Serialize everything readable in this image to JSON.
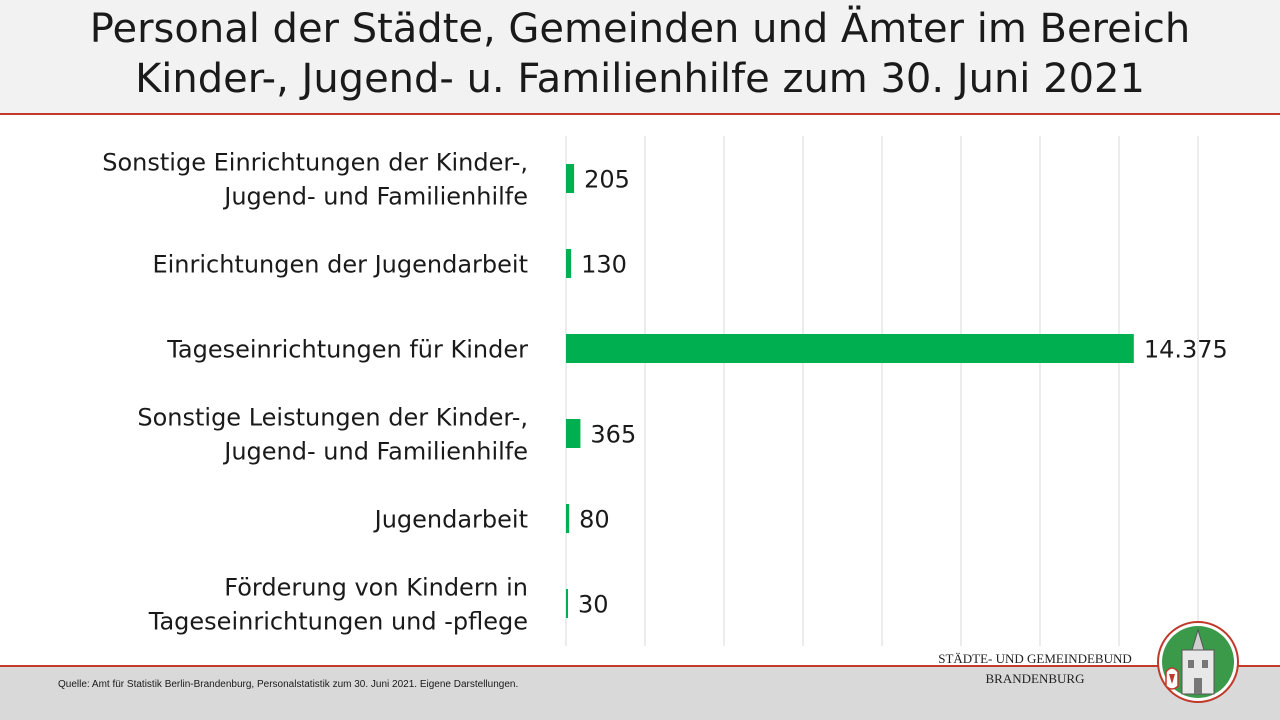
{
  "title": {
    "line1": "Personal der Städte, Gemeinden und Ämter im Bereich",
    "line2": "Kinder-, Jugend- u. Familienhilfe zum 30. Juni 2021"
  },
  "chart_data": {
    "type": "bar",
    "orientation": "horizontal",
    "categories": [
      [
        "Sonstige Einrichtungen der Kinder-,",
        "Jugend- und Familienhilfe"
      ],
      [
        "Einrichtungen der Jugendarbeit"
      ],
      [
        "Tageseinrichtungen für Kinder"
      ],
      [
        "Sonstige Leistungen der Kinder-,",
        "Jugend- und Familienhilfe"
      ],
      [
        "Jugendarbeit"
      ],
      [
        "Förderung von Kindern in",
        "Tageseinrichtungen und -pflege"
      ]
    ],
    "values": [
      205,
      130,
      14375,
      365,
      80,
      30
    ],
    "value_labels": [
      "205",
      "130",
      "14.375",
      "365",
      "80",
      "30"
    ],
    "xlim": [
      0,
      16000
    ],
    "grid": true,
    "bar_color": "#00b050"
  },
  "footer": {
    "source": "Quelle: Amt für Statistik Berlin-Brandenburg, Personalstatistik zum 30. Juni 2021. Eigene Darstellungen.",
    "org_line1": "STÄDTE-  UND GEMEINDEBUND",
    "org_line2": "BRANDENBURG"
  },
  "colors": {
    "accent_line": "#c0392b",
    "header_bg": "#f2f2f2",
    "footer_bg": "#d9d9d9"
  },
  "logo": {
    "icon": "coat-of-arms-logo"
  }
}
